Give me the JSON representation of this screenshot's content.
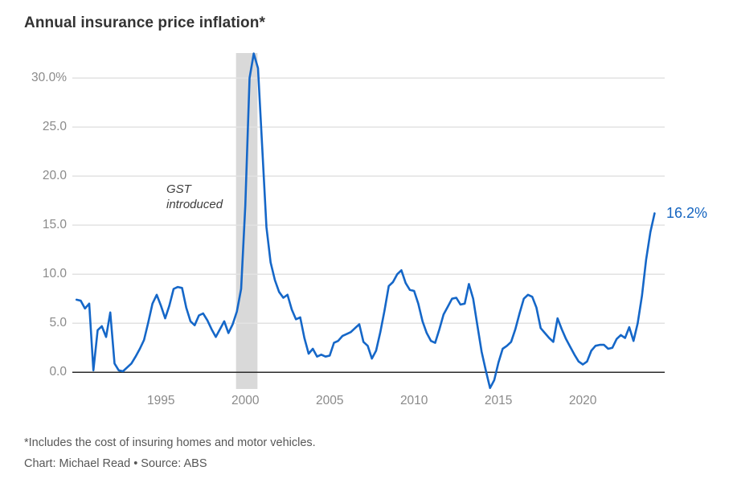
{
  "title": "Annual insurance price inflation*",
  "annotation": {
    "lines": [
      "GST",
      "introduced"
    ]
  },
  "end_label": "16.2%",
  "footnote": "*Includes the cost of insuring homes and motor vehicles.",
  "credit": "Chart: Michael Read • Source: ABS",
  "colors": {
    "line": "#1567c8",
    "end_label": "#1565c0",
    "gridline": "#e2e2e2",
    "zero_line": "#2b2b2b",
    "band": "#d9d9d9",
    "tick_text": "#8a8a8a",
    "title_text": "#333333",
    "footnote_text": "#575757"
  },
  "chart_data": {
    "type": "line",
    "title": "Annual insurance price inflation*",
    "unit": "percent annual change",
    "xlabel": "",
    "ylabel": "",
    "xlim": [
      1989.75,
      2024.85
    ],
    "ylim": [
      -1.7,
      32.55
    ],
    "grid": "horizontal",
    "legend_position": "none",
    "x_ticks": [
      1995,
      2000,
      2005,
      2010,
      2015,
      2020
    ],
    "y_ticks": [
      0,
      5,
      10,
      15,
      20,
      25,
      30
    ],
    "y_tick_labels": [
      "0.0",
      "5.0",
      "10.0",
      "15.0",
      "20.0",
      "25.0",
      "30.0%"
    ],
    "shaded_region": {
      "label": "GST introduced",
      "x_start": 1999.45,
      "x_end": 2000.72
    },
    "last_point_label": "16.2%",
    "series": [
      {
        "name": "Annual insurance price inflation",
        "points": [
          [
            1990.0,
            7.4
          ],
          [
            1990.25,
            7.3
          ],
          [
            1990.5,
            6.5
          ],
          [
            1990.75,
            7.0
          ],
          [
            1991.0,
            0.2
          ],
          [
            1991.25,
            4.3
          ],
          [
            1991.5,
            4.7
          ],
          [
            1991.75,
            3.6
          ],
          [
            1992.0,
            6.1
          ],
          [
            1992.25,
            0.9
          ],
          [
            1992.5,
            0.2
          ],
          [
            1992.75,
            0.1
          ],
          [
            1993.0,
            0.5
          ],
          [
            1993.25,
            0.9
          ],
          [
            1993.5,
            1.6
          ],
          [
            1993.75,
            2.4
          ],
          [
            1994.0,
            3.3
          ],
          [
            1994.25,
            5.1
          ],
          [
            1994.5,
            7.0
          ],
          [
            1994.75,
            7.9
          ],
          [
            1995.0,
            6.8
          ],
          [
            1995.25,
            5.5
          ],
          [
            1995.5,
            6.8
          ],
          [
            1995.75,
            8.5
          ],
          [
            1996.0,
            8.7
          ],
          [
            1996.25,
            8.6
          ],
          [
            1996.5,
            6.6
          ],
          [
            1996.75,
            5.2
          ],
          [
            1997.0,
            4.8
          ],
          [
            1997.25,
            5.8
          ],
          [
            1997.5,
            6.0
          ],
          [
            1997.75,
            5.3
          ],
          [
            1998.0,
            4.4
          ],
          [
            1998.25,
            3.6
          ],
          [
            1998.5,
            4.4
          ],
          [
            1998.75,
            5.2
          ],
          [
            1999.0,
            4.0
          ],
          [
            1999.25,
            4.9
          ],
          [
            1999.5,
            6.2
          ],
          [
            1999.75,
            8.5
          ],
          [
            2000.0,
            17.0
          ],
          [
            2000.25,
            30.0
          ],
          [
            2000.5,
            32.5
          ],
          [
            2000.75,
            31.0
          ],
          [
            2001.0,
            23.0
          ],
          [
            2001.25,
            14.8
          ],
          [
            2001.5,
            11.2
          ],
          [
            2001.75,
            9.4
          ],
          [
            2002.0,
            8.2
          ],
          [
            2002.25,
            7.6
          ],
          [
            2002.5,
            7.9
          ],
          [
            2002.75,
            6.4
          ],
          [
            2003.0,
            5.4
          ],
          [
            2003.25,
            5.6
          ],
          [
            2003.5,
            3.5
          ],
          [
            2003.75,
            1.9
          ],
          [
            2004.0,
            2.4
          ],
          [
            2004.25,
            1.6
          ],
          [
            2004.5,
            1.8
          ],
          [
            2004.75,
            1.6
          ],
          [
            2005.0,
            1.7
          ],
          [
            2005.25,
            3.0
          ],
          [
            2005.5,
            3.2
          ],
          [
            2005.75,
            3.7
          ],
          [
            2006.0,
            3.9
          ],
          [
            2006.25,
            4.1
          ],
          [
            2006.5,
            4.5
          ],
          [
            2006.75,
            4.9
          ],
          [
            2007.0,
            3.1
          ],
          [
            2007.25,
            2.7
          ],
          [
            2007.5,
            1.4
          ],
          [
            2007.75,
            2.2
          ],
          [
            2008.0,
            4.1
          ],
          [
            2008.25,
            6.3
          ],
          [
            2008.5,
            8.8
          ],
          [
            2008.75,
            9.2
          ],
          [
            2009.0,
            10.0
          ],
          [
            2009.25,
            10.4
          ],
          [
            2009.5,
            9.1
          ],
          [
            2009.75,
            8.4
          ],
          [
            2010.0,
            8.3
          ],
          [
            2010.25,
            7.0
          ],
          [
            2010.5,
            5.2
          ],
          [
            2010.75,
            4.0
          ],
          [
            2011.0,
            3.2
          ],
          [
            2011.25,
            3.0
          ],
          [
            2011.5,
            4.4
          ],
          [
            2011.75,
            5.9
          ],
          [
            2012.0,
            6.7
          ],
          [
            2012.25,
            7.5
          ],
          [
            2012.5,
            7.6
          ],
          [
            2012.75,
            6.9
          ],
          [
            2013.0,
            7.0
          ],
          [
            2013.25,
            9.0
          ],
          [
            2013.5,
            7.5
          ],
          [
            2013.75,
            4.8
          ],
          [
            2014.0,
            2.1
          ],
          [
            2014.25,
            0.2
          ],
          [
            2014.5,
            -1.6
          ],
          [
            2014.75,
            -0.8
          ],
          [
            2015.0,
            1.0
          ],
          [
            2015.25,
            2.4
          ],
          [
            2015.5,
            2.7
          ],
          [
            2015.75,
            3.1
          ],
          [
            2016.0,
            4.4
          ],
          [
            2016.25,
            6.0
          ],
          [
            2016.5,
            7.5
          ],
          [
            2016.75,
            7.9
          ],
          [
            2017.0,
            7.7
          ],
          [
            2017.25,
            6.6
          ],
          [
            2017.5,
            4.5
          ],
          [
            2017.75,
            4.0
          ],
          [
            2018.0,
            3.5
          ],
          [
            2018.25,
            3.1
          ],
          [
            2018.5,
            5.5
          ],
          [
            2018.75,
            4.4
          ],
          [
            2019.0,
            3.4
          ],
          [
            2019.25,
            2.6
          ],
          [
            2019.5,
            1.8
          ],
          [
            2019.75,
            1.1
          ],
          [
            2020.0,
            0.8
          ],
          [
            2020.25,
            1.1
          ],
          [
            2020.5,
            2.2
          ],
          [
            2020.75,
            2.7
          ],
          [
            2021.0,
            2.8
          ],
          [
            2021.25,
            2.8
          ],
          [
            2021.5,
            2.4
          ],
          [
            2021.75,
            2.5
          ],
          [
            2022.0,
            3.4
          ],
          [
            2022.25,
            3.8
          ],
          [
            2022.5,
            3.5
          ],
          [
            2022.75,
            4.6
          ],
          [
            2023.0,
            3.2
          ],
          [
            2023.25,
            5.0
          ],
          [
            2023.5,
            7.8
          ],
          [
            2023.75,
            11.5
          ],
          [
            2024.0,
            14.3
          ],
          [
            2024.25,
            16.2
          ]
        ]
      }
    ]
  }
}
